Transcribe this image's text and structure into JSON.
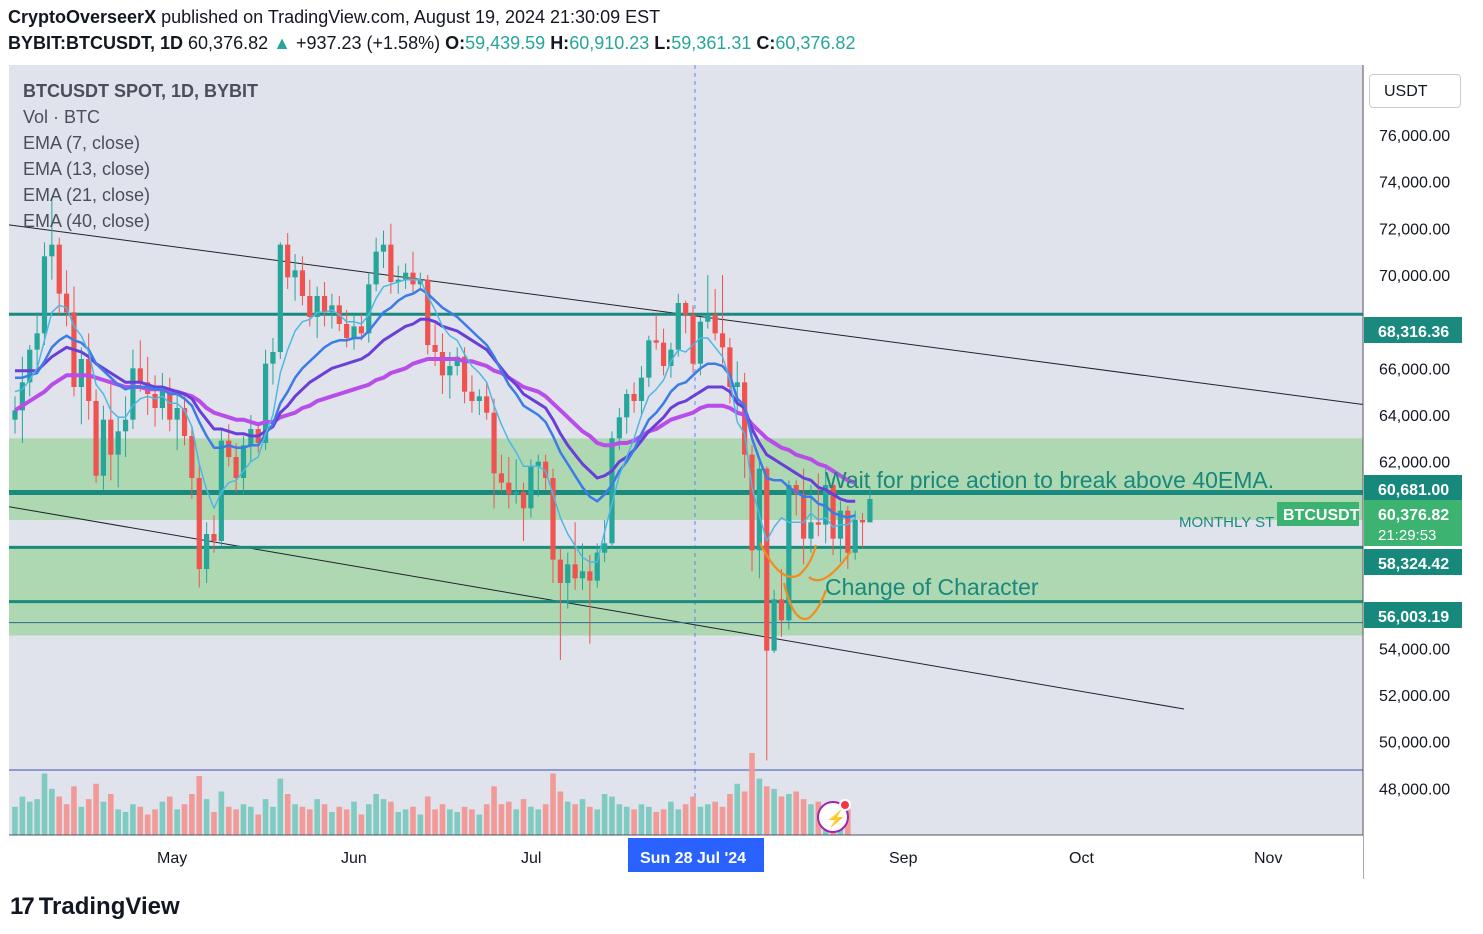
{
  "header": {
    "author": "CryptoOverseerX",
    "published_text": " published on TradingView.com, August 19, 2024 21:30:09 EST",
    "symbol": "BYBIT:BTCUSDT, 1D",
    "last": "60,376.82",
    "change_arrow": "▲",
    "change": "+937.23 (+1.58%)",
    "o_label": "O:",
    "o": "59,439.59",
    "h_label": "H:",
    "h": "60,910.23",
    "l_label": "L:",
    "l": "59,361.31",
    "c_label": "C:",
    "c": "60,376.82"
  },
  "legend": {
    "main": "BTCUSDT SPOT, 1D, BYBIT",
    "vol": "Vol · BTC",
    "ema7": "EMA (7, close)",
    "ema13": "EMA (13, close)",
    "ema21": "EMA (21, close)",
    "ema40": "EMA (40, close)"
  },
  "currency_button": "USDT",
  "annotations": {
    "wait": "Wait for price action to break above 40EMA.",
    "choch": "Change of Character",
    "monthly": "MONTHLY ST",
    "symbol_tag": "BTCUSDT",
    "countdown": "21:29:53"
  },
  "crosshair_date": "Sun 28 Jul '24",
  "footer": {
    "logo_mark": "17",
    "logo_text": "TradingView"
  },
  "colors": {
    "background": "#e0e3eb",
    "up": "#26a69a",
    "down": "#ef5350",
    "teal_level": "#1b8a7e",
    "zone": "#a5d6a7",
    "ema7": "#4fb7e3",
    "ema13": "#3d7be6",
    "ema21": "#6a3fd8",
    "ema40": "#b84de8",
    "orange": "#f28c1e"
  },
  "chart_data": {
    "type": "candlestick",
    "y_axis": {
      "min": 46000,
      "max": 79000,
      "ticks": [
        {
          "v": 76000,
          "label": "76,000.00"
        },
        {
          "v": 74000,
          "label": "74,000.00"
        },
        {
          "v": 72000,
          "label": "72,000.00"
        },
        {
          "v": 70000,
          "label": "70,000.00"
        },
        {
          "v": 66000,
          "label": "66,000.00"
        },
        {
          "v": 64000,
          "label": "64,000.00"
        },
        {
          "v": 62000,
          "label": "62,000.00"
        },
        {
          "v": 54000,
          "label": "54,000.00"
        },
        {
          "v": 52000,
          "label": "52,000.00"
        },
        {
          "v": 50000,
          "label": "50,000.00"
        },
        {
          "v": 48000,
          "label": "48,000.00"
        }
      ]
    },
    "x_axis": {
      "labels": [
        "May",
        "Jun",
        "Jul",
        "Sep",
        "Oct",
        "Nov"
      ]
    },
    "price_labels": [
      {
        "v": 68316.36,
        "label": "68,316.36"
      },
      {
        "v": 60681.0,
        "label": "60,681.00"
      },
      {
        "v": 60376.82,
        "label": "60,376.82"
      },
      {
        "v": 58324.42,
        "label": "58,324.42"
      },
      {
        "v": 56003.19,
        "label": "56,003.19"
      }
    ],
    "zones": [
      {
        "top": 63000,
        "bottom": 59500
      },
      {
        "top": 58300,
        "bottom": 54550
      }
    ],
    "levels": [
      68316.36,
      60681.0,
      58324.42,
      56003.19,
      55100
    ],
    "ohlc": [
      [
        63800,
        64800,
        63200,
        64200
      ],
      [
        64200,
        66500,
        62800,
        65400
      ],
      [
        65400,
        67000,
        64800,
        66800
      ],
      [
        66800,
        68400,
        66000,
        67500
      ],
      [
        67500,
        71400,
        67000,
        70800
      ],
      [
        70800,
        73300,
        69800,
        71300
      ],
      [
        71300,
        71600,
        68300,
        69200
      ],
      [
        69200,
        70200,
        67800,
        68400
      ],
      [
        68400,
        69500,
        64800,
        65200
      ],
      [
        65200,
        66900,
        63600,
        66400
      ],
      [
        66400,
        67500,
        63800,
        64600
      ],
      [
        64600,
        65100,
        61100,
        61400
      ],
      [
        61400,
        64400,
        60800,
        63800
      ],
      [
        63800,
        65300,
        61200,
        62300
      ],
      [
        62300,
        63900,
        60900,
        63300
      ],
      [
        63300,
        64800,
        62200,
        63800
      ],
      [
        63800,
        66800,
        63400,
        66000
      ],
      [
        66000,
        67200,
        65000,
        65400
      ],
      [
        65400,
        66500,
        64000,
        64900
      ],
      [
        64900,
        65700,
        63500,
        64300
      ],
      [
        64300,
        65800,
        63800,
        65100
      ],
      [
        65100,
        65600,
        63300,
        63800
      ],
      [
        63800,
        64900,
        62500,
        64300
      ],
      [
        64300,
        64800,
        62700,
        63100
      ],
      [
        63100,
        63500,
        60400,
        61300
      ],
      [
        61300,
        61900,
        56600,
        57400
      ],
      [
        57400,
        59400,
        56800,
        58900
      ],
      [
        58900,
        59700,
        58100,
        58600
      ],
      [
        58600,
        63400,
        58400,
        62900
      ],
      [
        62900,
        63600,
        61800,
        62200
      ],
      [
        62200,
        62800,
        60700,
        61300
      ],
      [
        61300,
        63100,
        60600,
        62700
      ],
      [
        62700,
        64000,
        62000,
        63400
      ],
      [
        63400,
        63700,
        62400,
        62800
      ],
      [
        62800,
        66800,
        62500,
        66200
      ],
      [
        66200,
        67300,
        65300,
        66700
      ],
      [
        66700,
        71400,
        66400,
        71300
      ],
      [
        71300,
        71800,
        69400,
        69900
      ],
      [
        69900,
        70900,
        68900,
        70200
      ],
      [
        70200,
        70800,
        68700,
        69100
      ],
      [
        69100,
        69800,
        67800,
        68200
      ],
      [
        68200,
        69500,
        67300,
        69100
      ],
      [
        69100,
        69700,
        67800,
        68400
      ],
      [
        68400,
        69200,
        67700,
        68700
      ],
      [
        68700,
        69100,
        67600,
        67900
      ],
      [
        67900,
        68500,
        66900,
        67300
      ],
      [
        67300,
        68300,
        66800,
        67800
      ],
      [
        67800,
        68300,
        67200,
        67500
      ],
      [
        67500,
        70100,
        67100,
        69600
      ],
      [
        69600,
        71600,
        69300,
        71000
      ],
      [
        71000,
        71900,
        70300,
        71300
      ],
      [
        71300,
        72200,
        69200,
        69700
      ],
      [
        69700,
        70400,
        69200,
        69800
      ],
      [
        69800,
        70500,
        69400,
        70100
      ],
      [
        70100,
        71000,
        69200,
        69600
      ],
      [
        69600,
        70100,
        69400,
        69800
      ],
      [
        69800,
        70000,
        66600,
        67000
      ],
      [
        67000,
        67900,
        66100,
        66700
      ],
      [
        66700,
        67500,
        64900,
        65700
      ],
      [
        65700,
        66700,
        64700,
        66100
      ],
      [
        66100,
        66900,
        65700,
        66500
      ],
      [
        66500,
        66900,
        64500,
        65000
      ],
      [
        65000,
        65700,
        64100,
        64600
      ],
      [
        64600,
        65100,
        64000,
        64800
      ],
      [
        64800,
        65400,
        63800,
        64100
      ],
      [
        64100,
        64700,
        60000,
        61500
      ],
      [
        61500,
        62300,
        60700,
        61100
      ],
      [
        61100,
        62200,
        60000,
        60600
      ],
      [
        60600,
        62100,
        60200,
        60700
      ],
      [
        60700,
        61100,
        58600,
        60000
      ],
      [
        60000,
        62100,
        59600,
        61800
      ],
      [
        61800,
        62300,
        60500,
        62000
      ],
      [
        62000,
        62300,
        60800,
        61300
      ],
      [
        61300,
        61700,
        56800,
        57800
      ],
      [
        57800,
        58300,
        53500,
        56800
      ],
      [
        56800,
        58100,
        55700,
        57600
      ],
      [
        57600,
        59400,
        56500,
        57000
      ],
      [
        57000,
        58500,
        56500,
        57300
      ],
      [
        57300,
        58000,
        54200,
        56900
      ],
      [
        56900,
        58500,
        56600,
        58100
      ],
      [
        58100,
        59500,
        57700,
        58500
      ],
      [
        58500,
        63300,
        58300,
        63000
      ],
      [
        63000,
        64300,
        62500,
        63900
      ],
      [
        63900,
        65100,
        63200,
        64900
      ],
      [
        64900,
        65400,
        64100,
        64600
      ],
      [
        64600,
        66100,
        64000,
        65600
      ],
      [
        65600,
        67400,
        65200,
        67200
      ],
      [
        67200,
        68300,
        66800,
        67100
      ],
      [
        67100,
        67700,
        65700,
        66100
      ],
      [
        66100,
        67100,
        65600,
        66800
      ],
      [
        66800,
        69200,
        66500,
        68800
      ],
      [
        68800,
        68900,
        67500,
        68300
      ],
      [
        68300,
        68700,
        65800,
        66200
      ],
      [
        66200,
        68200,
        65700,
        68000
      ],
      [
        68000,
        70000,
        67700,
        68300
      ],
      [
        68300,
        69400,
        67200,
        67500
      ],
      [
        67500,
        70000,
        66200,
        66900
      ],
      [
        66900,
        67300,
        64500,
        65200
      ],
      [
        65200,
        66300,
        64000,
        65400
      ],
      [
        65400,
        65800,
        61300,
        62300
      ],
      [
        62300,
        62700,
        57300,
        58200
      ],
      [
        58200,
        62000,
        57000,
        61700
      ],
      [
        61700,
        61800,
        49200,
        53900
      ],
      [
        53900,
        56500,
        53800,
        56100
      ],
      [
        56100,
        57400,
        54500,
        55200
      ],
      [
        55200,
        61200,
        54800,
        61000
      ],
      [
        61000,
        61200,
        59700,
        60600
      ],
      [
        60600,
        61700,
        57600,
        58700
      ],
      [
        58700,
        61000,
        58100,
        59400
      ],
      [
        59400,
        61500,
        58800,
        59300
      ],
      [
        59300,
        61800,
        58500,
        61000
      ],
      [
        61000,
        61300,
        58000,
        58700
      ],
      [
        58700,
        60300,
        57700,
        59900
      ],
      [
        59900,
        60100,
        57400,
        58100
      ],
      [
        58100,
        59900,
        57800,
        59500
      ],
      [
        59500,
        59800,
        58300,
        59400
      ],
      [
        59400,
        60900,
        59400,
        60400
      ]
    ],
    "volume": [
      1.1,
      1.5,
      1.3,
      1.4,
      2.4,
      1.8,
      1.5,
      1.2,
      1.9,
      1.1,
      1.4,
      2.0,
      1.3,
      1.6,
      1.0,
      0.9,
      1.2,
      1.1,
      0.8,
      1.0,
      1.3,
      1.5,
      1.0,
      1.2,
      1.6,
      2.3,
      1.4,
      0.9,
      1.7,
      1.1,
      1.0,
      1.2,
      1.1,
      0.8,
      1.4,
      1.1,
      2.2,
      1.6,
      1.2,
      1.1,
      1.0,
      1.4,
      1.2,
      0.9,
      1.1,
      1.0,
      1.3,
      0.8,
      1.2,
      1.6,
      1.4,
      1.3,
      0.9,
      1.0,
      1.1,
      0.8,
      1.5,
      1.0,
      1.2,
      1.0,
      0.9,
      1.1,
      1.0,
      0.8,
      1.2,
      1.9,
      1.2,
      1.3,
      1.0,
      1.4,
      1.1,
      1.0,
      1.2,
      2.4,
      1.7,
      1.3,
      1.2,
      1.4,
      1.1,
      1.0,
      1.6,
      1.5,
      1.2,
      1.1,
      1.0,
      1.2,
      1.1,
      0.9,
      1.0,
      1.3,
      1.0,
      1.2,
      1.5,
      1.1,
      1.2,
      1.3,
      1.1,
      1.6,
      2.0,
      1.7,
      3.2,
      2.2,
      1.9,
      1.8,
      1.5,
      1.6,
      1.7,
      1.4,
      1.2,
      1.3,
      1.0,
      1.2,
      1.1,
      1.0
    ],
    "ema7": [
      65000,
      65100,
      65500,
      66000,
      67200,
      68400,
      68700,
      68600,
      67800,
      67400,
      66700,
      65300,
      64900,
      64200,
      63900,
      63900,
      64400,
      64700,
      64800,
      64700,
      64800,
      64500,
      64500,
      64200,
      63500,
      61900,
      60800,
      60000,
      60700,
      61100,
      61200,
      61600,
      62000,
      62200,
      63200,
      64000,
      65800,
      66800,
      67600,
      68000,
      68100,
      68400,
      68400,
      68500,
      68300,
      68000,
      68000,
      67900,
      68300,
      69000,
      69500,
      69600,
      69700,
      69800,
      69800,
      69800,
      69100,
      68500,
      67800,
      67400,
      67200,
      66600,
      66100,
      65800,
      65400,
      64400,
      63600,
      62900,
      62400,
      61800,
      61800,
      61800,
      61600,
      60600,
      59600,
      58900,
      58400,
      57900,
      57700,
      57700,
      59000,
      60200,
      61400,
      62200,
      63000,
      64000,
      64800,
      65100,
      65500,
      66300,
      66800,
      66700,
      67000,
      67300,
      67300,
      66900,
      66500,
      65500,
      63700,
      63200,
      60900,
      59700,
      58600,
      59200,
      59600,
      59400,
      59400,
      59400,
      59800,
      59500,
      59600,
      59200,
      59300,
      59300,
      59600
    ],
    "ema13": [
      65600,
      65600,
      65700,
      65800,
      66300,
      66900,
      67200,
      67400,
      67200,
      67100,
      66800,
      66200,
      65900,
      65600,
      65300,
      65100,
      65200,
      65200,
      65200,
      65100,
      65100,
      64900,
      64900,
      64700,
      64400,
      63700,
      63100,
      62600,
      62600,
      62700,
      62600,
      62600,
      62700,
      62700,
      63200,
      63600,
      64500,
      65000,
      65600,
      66000,
      66300,
      66600,
      66900,
      67100,
      67200,
      67200,
      67300,
      67300,
      67600,
      68000,
      68400,
      68600,
      68900,
      69100,
      69200,
      69400,
      69200,
      68900,
      68600,
      68400,
      68200,
      67900,
      67600,
      67300,
      67000,
      66500,
      65900,
      65300,
      64900,
      64400,
      64200,
      64000,
      63700,
      63100,
      62400,
      61900,
      61400,
      60900,
      60500,
      60300,
      60600,
      61000,
      61600,
      62000,
      62500,
      63200,
      63800,
      64100,
      64500,
      65000,
      65300,
      65400,
      65700,
      66000,
      66200,
      66200,
      66100,
      65700,
      64700,
      64400,
      63000,
      62100,
      61300,
      61200,
      61200,
      60900,
      60700,
      60500,
      60500,
      60200,
      60100,
      59800,
      59700,
      59600,
      59700
    ],
    "ema21": [
      65900,
      65900,
      65900,
      65900,
      66200,
      66500,
      66700,
      66900,
      66800,
      66700,
      66500,
      66200,
      66000,
      65800,
      65600,
      65400,
      65400,
      65400,
      65300,
      65200,
      65200,
      65100,
      65000,
      64900,
      64700,
      64200,
      63800,
      63400,
      63400,
      63300,
      63200,
      63200,
      63100,
      63100,
      63300,
      63500,
      64100,
      64400,
      64800,
      65100,
      65400,
      65600,
      65800,
      66000,
      66100,
      66200,
      66300,
      66400,
      66600,
      66900,
      67200,
      67400,
      67600,
      67800,
      67900,
      68100,
      68100,
      68000,
      67800,
      67700,
      67600,
      67400,
      67200,
      67000,
      66800,
      66400,
      66000,
      65600,
      65300,
      64900,
      64700,
      64500,
      64300,
      63800,
      63200,
      62700,
      62300,
      61900,
      61600,
      61300,
      61400,
      61600,
      62000,
      62200,
      62500,
      62900,
      63300,
      63600,
      63900,
      64300,
      64500,
      64600,
      64800,
      65000,
      65200,
      65200,
      65200,
      65000,
      64500,
      64300,
      63400,
      62800,
      62300,
      62100,
      61900,
      61700,
      61500,
      61300,
      61200,
      60900,
      60800,
      60600,
      60400,
      60300,
      60300
    ],
    "ema40": [
      64200,
      64400,
      64600,
      64800,
      65000,
      65300,
      65500,
      65700,
      65700,
      65700,
      65700,
      65600,
      65500,
      65400,
      65300,
      65200,
      65200,
      65200,
      65100,
      65100,
      65100,
      65000,
      65000,
      64900,
      64800,
      64600,
      64300,
      64100,
      64000,
      63900,
      63800,
      63800,
      63700,
      63600,
      63700,
      63700,
      63900,
      64000,
      64100,
      64300,
      64400,
      64600,
      64700,
      64800,
      64900,
      65000,
      65100,
      65200,
      65300,
      65500,
      65600,
      65800,
      65900,
      66000,
      66200,
      66300,
      66400,
      66400,
      66400,
      66400,
      66400,
      66300,
      66300,
      66200,
      66100,
      65900,
      65800,
      65600,
      65400,
      65200,
      65100,
      65000,
      64800,
      64500,
      64200,
      63900,
      63600,
      63300,
      63100,
      62800,
      62700,
      62700,
      62800,
      62800,
      62900,
      63100,
      63300,
      63400,
      63600,
      63800,
      63900,
      64000,
      64100,
      64300,
      64400,
      64400,
      64400,
      64300,
      64100,
      64000,
      63600,
      63300,
      63000,
      62800,
      62600,
      62500,
      62300,
      62200,
      62100,
      61900,
      61800,
      61600,
      61400,
      61200,
      61100
    ]
  }
}
